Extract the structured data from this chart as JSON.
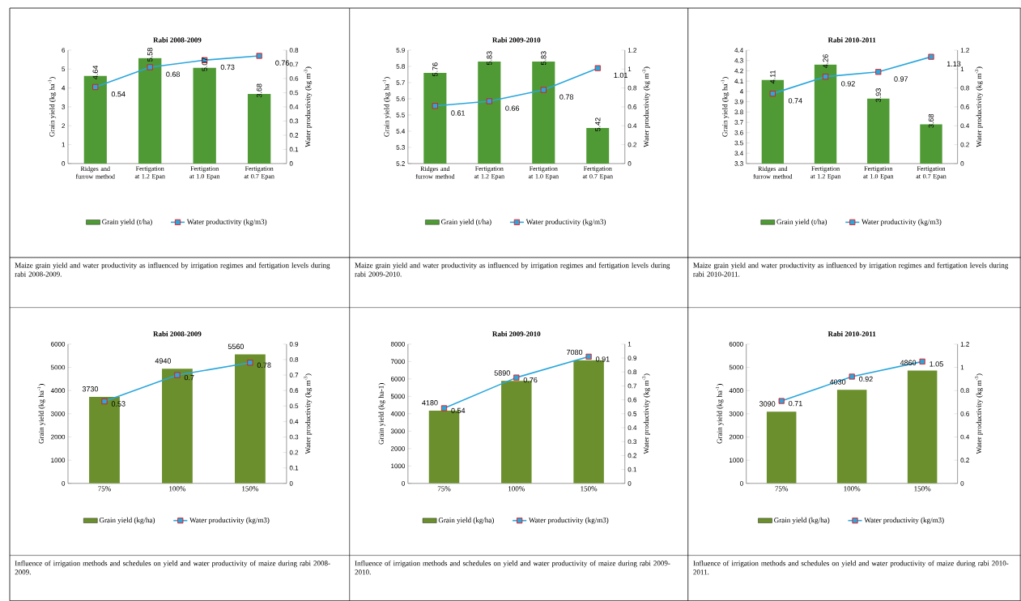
{
  "chart_data": [
    {
      "type": "bar",
      "title": "Rabi 2008-2009",
      "categories": [
        "Ridges and furrow method",
        "Fertigation at 1.2 Epan",
        "Fertigation at 1.0 Epan",
        "Fertigation at 0.7 Epan"
      ],
      "ylabel": "Grain yield (kg ha$^{-1}$)",
      "y2label": "Water productivity (kg m$^{-3}$)",
      "ylim": [
        0,
        6
      ],
      "yticks": [
        0,
        1,
        2,
        3,
        4,
        5,
        6
      ],
      "y2lim": [
        0,
        0.8
      ],
      "y2ticks": [
        0,
        0.1,
        0.2,
        0.3,
        0.4,
        0.5,
        0.6,
        0.7,
        0.8
      ],
      "series": [
        {
          "name": "Grain yield (t/ha)",
          "color": "#4f9a35",
          "values": [
            4.64,
            5.58,
            5.07,
            3.68
          ]
        },
        {
          "name": "Water productivity (kg/m3)",
          "type": "line",
          "axis": "y2",
          "color": "#2aa6dc",
          "values": [
            0.54,
            0.68,
            0.73,
            0.76
          ]
        }
      ],
      "data_labels": true,
      "legend": "bottom",
      "marker": "square",
      "annotations": [
        "Maize grain yield and water productivity as influenced by irrigation regimes and fertigation levels during rabi 2008-2009."
      ]
    },
    {
      "type": "bar",
      "title": "Rabi 2009-2010",
      "categories": [
        "Ridges and furrow method",
        "Fertigation at 1.2 Epan",
        "Fertigation at 1.0 Epan",
        "Fertigation at 0.7 Epan"
      ],
      "ylabel": "Grain yield (kg ha$^{-1}$)",
      "y2label": "Water productivity (kg m$^{-3}$)",
      "ylim": [
        5.2,
        5.9
      ],
      "yticks": [
        5.2,
        5.3,
        5.4,
        5.5,
        5.6,
        5.7,
        5.8,
        5.9
      ],
      "y2lim": [
        0,
        1.2
      ],
      "y2ticks": [
        0,
        0.2,
        0.4,
        0.6,
        0.8,
        1,
        1.2
      ],
      "series": [
        {
          "name": "Grain yield (t/ha)",
          "color": "#4f9a35",
          "values": [
            5.76,
            5.83,
            5.83,
            5.42
          ]
        },
        {
          "name": "Water productivity (kg/m3)",
          "type": "line",
          "axis": "y2",
          "color": "#2aa6dc",
          "values": [
            0.61,
            0.66,
            0.78,
            1.01
          ]
        }
      ],
      "data_labels": true,
      "legend": "bottom",
      "marker": "square",
      "annotations": [
        "Maize grain yield and water productivity as influenced by irrigation regimes and fertigation levels during rabi 2009-2010."
      ]
    },
    {
      "type": "bar",
      "title": "Rabi 2010-2011",
      "categories": [
        "Ridges and furrow method",
        "Fertigation at 1.2 Epan",
        "Fertigation at 1.0 Epan",
        "Fertigation at 0.7 Epan"
      ],
      "ylabel": "Grain yield (kg ha$^{-1}$)",
      "y2label": "Water productivity (kg m$^{-3}$)",
      "ylim": [
        3.3,
        4.4
      ],
      "yticks": [
        3.3,
        3.4,
        3.5,
        3.6,
        3.7,
        3.8,
        3.9,
        4,
        4.1,
        4.2,
        4.3,
        4.4
      ],
      "y2lim": [
        0,
        1.2
      ],
      "y2ticks": [
        0,
        0.2,
        0.4,
        0.6,
        0.8,
        1,
        1.2
      ],
      "series": [
        {
          "name": "Grain yield (t/ha)",
          "color": "#4f9a35",
          "values": [
            4.11,
            4.26,
            3.93,
            3.68
          ]
        },
        {
          "name": "Water productivity (kg/m3)",
          "type": "line",
          "axis": "y2",
          "color": "#2aa6dc",
          "values": [
            0.74,
            0.92,
            0.97,
            1.13
          ]
        }
      ],
      "data_labels": true,
      "legend": "bottom",
      "marker": "square",
      "annotations": [
        "Maize grain yield and water productivity as influenced by irrigation regimes and fertigation levels during rabi 2010-2011."
      ]
    },
    {
      "type": "bar",
      "title": "Rabi 2008-2009",
      "categories": [
        "75%",
        "100%",
        "150%"
      ],
      "ylabel": "Grain yield (kg ha$^{-1}$)",
      "y2label": "Water productivity (kg m$^{-3}$)",
      "ylim": [
        0,
        6000
      ],
      "yticks": [
        0,
        1000,
        2000,
        3000,
        4000,
        5000,
        6000
      ],
      "y2lim": [
        0,
        0.9
      ],
      "y2ticks": [
        0,
        0.1,
        0.2,
        0.3,
        0.4,
        0.5,
        0.6,
        0.7,
        0.8,
        0.9
      ],
      "series": [
        {
          "name": "Grain yield (kg/ha)",
          "color": "#6a8f2c",
          "values": [
            3730,
            4940,
            5560
          ]
        },
        {
          "name": "Water productivity (kg/m3)",
          "type": "line",
          "axis": "y2",
          "color": "#2aa6dc",
          "values": [
            0.53,
            0.7,
            0.78
          ]
        }
      ],
      "data_labels": true,
      "legend": "bottom",
      "marker": "square",
      "annotations": [
        "Influence of irrigation methods and schedules on yield and water productivity of maize during rabi 2008-2009."
      ]
    },
    {
      "type": "bar",
      "title": "Rabi 2009-2010",
      "categories": [
        "75%",
        "100%",
        "150%"
      ],
      "ylabel": "Grain yield (kg ha-1)",
      "y2label": "Water productivity (kg m$^{-3}$)",
      "ylim": [
        0,
        8000
      ],
      "yticks": [
        0,
        1000,
        2000,
        3000,
        4000,
        5000,
        6000,
        7000,
        8000
      ],
      "y2lim": [
        0,
        1
      ],
      "y2ticks": [
        0,
        0.1,
        0.2,
        0.3,
        0.4,
        0.5,
        0.6,
        0.7,
        0.8,
        0.9,
        1
      ],
      "series": [
        {
          "name": "Grain yield (kg/ha)",
          "color": "#6a8f2c",
          "values": [
            4180,
            5890,
            7080
          ]
        },
        {
          "name": "Water productivity (kg/m3)",
          "type": "line",
          "axis": "y2",
          "color": "#2aa6dc",
          "values": [
            0.54,
            0.76,
            0.91
          ]
        }
      ],
      "data_labels": true,
      "legend": "bottom",
      "marker": "square",
      "annotations": [
        "Influence of irrigation methods and schedules on yield and water productivity of maize during rabi 2009-2010."
      ]
    },
    {
      "type": "bar",
      "title": "Rabi 2010-2011",
      "categories": [
        "75%",
        "100%",
        "150%"
      ],
      "ylabel": "Grain yield (kg ha$^{-1}$)",
      "y2label": "Water productivity (kg m$^{-3}$)",
      "ylim": [
        0,
        6000
      ],
      "yticks": [
        0,
        1000,
        2000,
        3000,
        4000,
        5000,
        6000
      ],
      "y2lim": [
        0,
        1.2
      ],
      "y2ticks": [
        0,
        0.2,
        0.4,
        0.6,
        0.8,
        1,
        1.2
      ],
      "series": [
        {
          "name": "Grain yield (kg/ha)",
          "color": "#6a8f2c",
          "values": [
            3090,
            4030,
            4860
          ]
        },
        {
          "name": "Water productivity (kg/m3)",
          "type": "line",
          "axis": "y2",
          "color": "#2aa6dc",
          "values": [
            0.71,
            0.92,
            1.05
          ]
        }
      ],
      "data_labels": true,
      "legend": "bottom",
      "marker": "square",
      "annotations": [
        "Influence of irrigation methods and schedules on yield and water productivity of maize during rabi 2010-2011."
      ]
    }
  ]
}
